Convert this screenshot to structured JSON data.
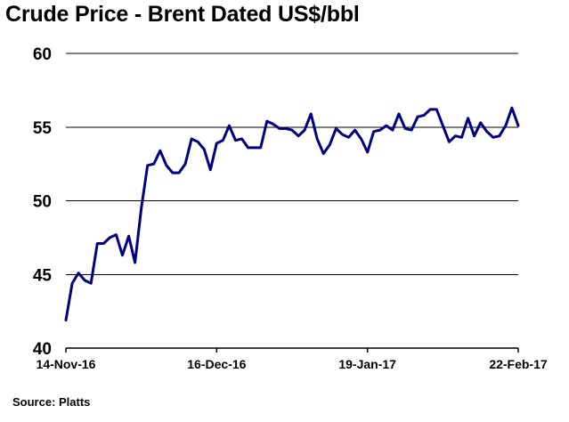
{
  "chart_data": {
    "type": "line",
    "title": "Crude Price - Brent Dated US$/bbl",
    "source": "Source: Platts",
    "xlabel": "",
    "ylabel": "",
    "ylim": [
      40,
      60
    ],
    "yticks": [
      40,
      45,
      50,
      55,
      60
    ],
    "xtick_labels": [
      "14-Nov-16",
      "16-Dec-16",
      "19-Jan-17",
      "22-Feb-17"
    ],
    "grid": "horizontal",
    "colors": {
      "line": "#000080",
      "grid": "#000000"
    },
    "series": [
      {
        "name": "",
        "values": [
          41.9,
          44.4,
          45.1,
          44.6,
          44.4,
          47.1,
          47.1,
          47.5,
          47.7,
          46.3,
          47.6,
          45.8,
          49.5,
          52.4,
          52.5,
          53.4,
          52.4,
          51.9,
          51.9,
          52.5,
          54.2,
          54.0,
          53.5,
          52.1,
          53.9,
          54.1,
          55.1,
          54.1,
          54.2,
          53.6,
          53.6,
          53.6,
          55.4,
          55.2,
          54.9,
          54.9,
          54.8,
          54.4,
          54.8,
          55.9,
          54.2,
          53.2,
          53.8,
          54.9,
          54.5,
          54.3,
          54.8,
          54.2,
          53.3,
          54.7,
          54.8,
          55.1,
          54.8,
          55.9,
          54.9,
          54.8,
          55.7,
          55.8,
          56.2,
          56.2,
          55.1,
          54.0,
          54.4,
          54.3,
          55.6,
          54.4,
          55.3,
          54.7,
          54.3,
          54.4,
          55.1,
          56.3,
          55.1
        ]
      }
    ]
  }
}
